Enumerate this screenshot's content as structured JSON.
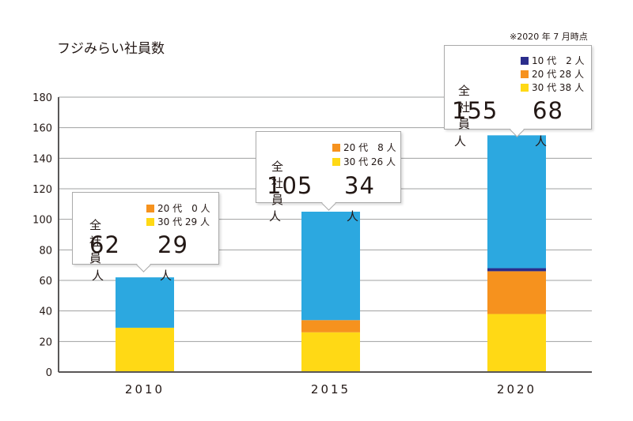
{
  "title": "フジみらい社員数",
  "note": "※2020 年 7 月時点",
  "colors": {
    "teens": "#2b2d8c",
    "twenties": "#f6921e",
    "thirties": "#ffd915",
    "other": "#2ca8e0",
    "axis": "#595757",
    "grid": "#9fa0a0"
  },
  "chart_data": {
    "type": "bar",
    "stacked": true,
    "categories": [
      "2010",
      "2015",
      "2020"
    ],
    "ylim": [
      0,
      180
    ],
    "yticks": [
      0,
      20,
      40,
      60,
      80,
      100,
      120,
      140,
      160,
      180
    ],
    "grid": true,
    "series": [
      {
        "key": "thirties",
        "values": [
          29,
          26,
          38
        ]
      },
      {
        "key": "twenties",
        "values": [
          0,
          8,
          28
        ]
      },
      {
        "key": "teens",
        "values": [
          0,
          0,
          2
        ]
      },
      {
        "key": "other",
        "values": [
          33,
          71,
          87
        ]
      }
    ],
    "totals": [
      62,
      105,
      155
    ]
  },
  "callouts": [
    {
      "total_label": "全社員",
      "total": "62",
      "unit": "人",
      "young": "29",
      "rows": [
        {
          "color_key": "twenties",
          "text": "20 代　0 人"
        },
        {
          "color_key": "thirties",
          "text": "30 代  29 人"
        }
      ]
    },
    {
      "total_label": "全社員",
      "total": "105",
      "unit": "人",
      "young": "34",
      "rows": [
        {
          "color_key": "twenties",
          "text": "20 代　8 人"
        },
        {
          "color_key": "thirties",
          "text": "30 代  26 人"
        }
      ]
    },
    {
      "total_label": "全社員",
      "total": "155",
      "unit": "人",
      "young": "68",
      "rows": [
        {
          "color_key": "teens",
          "text": "10 代　2 人"
        },
        {
          "color_key": "twenties",
          "text": "20 代  28 人"
        },
        {
          "color_key": "thirties",
          "text": "30 代  38 人"
        }
      ]
    }
  ]
}
